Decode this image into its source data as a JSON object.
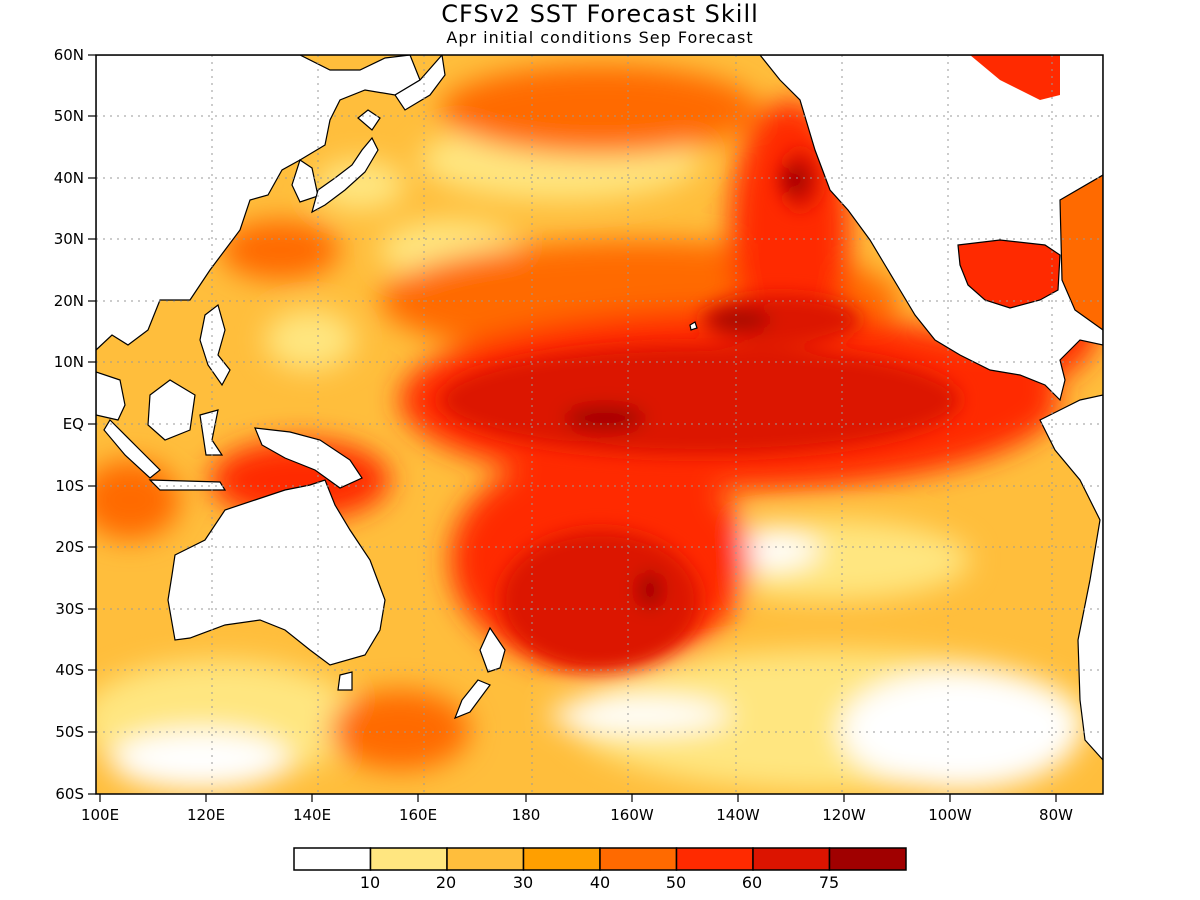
{
  "title": "CFSv2 SST Forecast Skill",
  "subtitle": "Apr initial conditions  Sep Forecast",
  "lat_labels": [
    "60N",
    "50N",
    "40N",
    "30N",
    "20N",
    "10N",
    "EQ",
    "10S",
    "20S",
    "30S",
    "40S",
    "50S",
    "60S"
  ],
  "lon_labels": [
    "100E",
    "120E",
    "140E",
    "160E",
    "180",
    "160W",
    "140W",
    "120W",
    "100W",
    "80W"
  ],
  "colorbar": {
    "colors": [
      "#ffffff",
      "#ffe680",
      "#ffbe3c",
      "#ff9f00",
      "#ff6a00",
      "#ff2a00",
      "#dc1400",
      "#a00000"
    ],
    "labels": [
      "10",
      "20",
      "30",
      "40",
      "50",
      "60",
      "75"
    ]
  },
  "palette": {
    "land": "#ffffff",
    "coast": "#000000",
    "grid": "#999999"
  }
}
